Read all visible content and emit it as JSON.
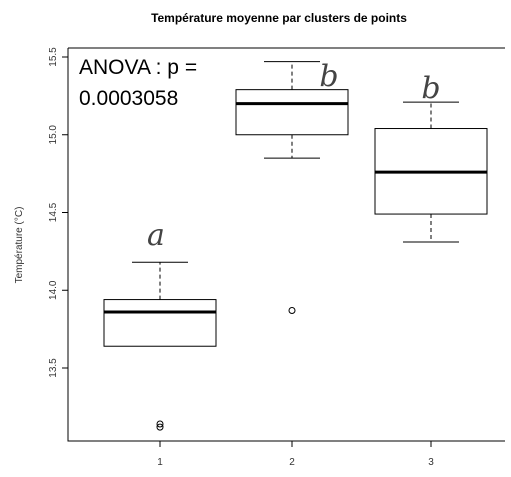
{
  "chart_data": {
    "type": "box",
    "title": "Température moyenne par clusters de points",
    "xlabel": "",
    "ylabel": "Température (°C)",
    "categories": [
      "1",
      "2",
      "3"
    ],
    "ylim": [
      13.0,
      15.5
    ],
    "yticks": [
      "13.5",
      "14.0",
      "14.5",
      "15.0",
      "15.5"
    ],
    "boxes": [
      {
        "category": "1",
        "whisker_low": 13.64,
        "q1": 13.64,
        "median": 13.86,
        "q3": 13.94,
        "whisker_high": 14.18,
        "outliers": [
          13.12,
          13.14
        ]
      },
      {
        "category": "2",
        "whisker_low": 14.85,
        "q1": 15.0,
        "median": 15.2,
        "q3": 15.29,
        "whisker_high": 15.47,
        "outliers": [
          13.87
        ]
      },
      {
        "category": "3",
        "whisker_low": 14.31,
        "q1": 14.49,
        "median": 14.76,
        "q3": 15.04,
        "whisker_high": 15.21,
        "outliers": []
      }
    ],
    "group_letters": [
      "a",
      "b",
      "b"
    ],
    "annotation": [
      "ANOVA : p =",
      "0.0003058"
    ]
  }
}
